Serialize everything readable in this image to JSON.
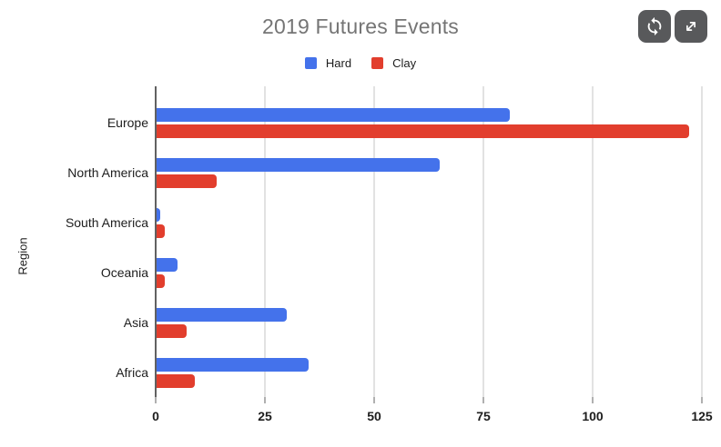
{
  "chart_data": {
    "type": "bar",
    "orientation": "horizontal",
    "title": "2019 Futures Events",
    "xlabel": "",
    "ylabel": "Region",
    "categories": [
      "Europe",
      "North America",
      "South America",
      "Oceania",
      "Asia",
      "Africa"
    ],
    "series": [
      {
        "name": "Hard",
        "color": "#4472eb",
        "values": [
          81,
          65,
          1,
          5,
          30,
          35
        ]
      },
      {
        "name": "Clay",
        "color": "#e23e2d",
        "values": [
          122,
          14,
          2,
          2,
          7,
          9
        ]
      }
    ],
    "xlim": [
      0,
      125
    ],
    "xticks": [
      0,
      25,
      50,
      75,
      100,
      125
    ],
    "grid": true,
    "legend_position": "top"
  },
  "toolbar": {
    "refresh_icon": "circular-sync-arrows",
    "expand_icon": "diagonal-resize-arrows"
  },
  "colors": {
    "title_text": "#757575",
    "axis_line": "#616161",
    "gridline": "#e2e2e2",
    "label_text": "#1d1d1d",
    "button_background": "#58595b",
    "hard_series": "#4472eb",
    "clay_series": "#e23e2d"
  }
}
